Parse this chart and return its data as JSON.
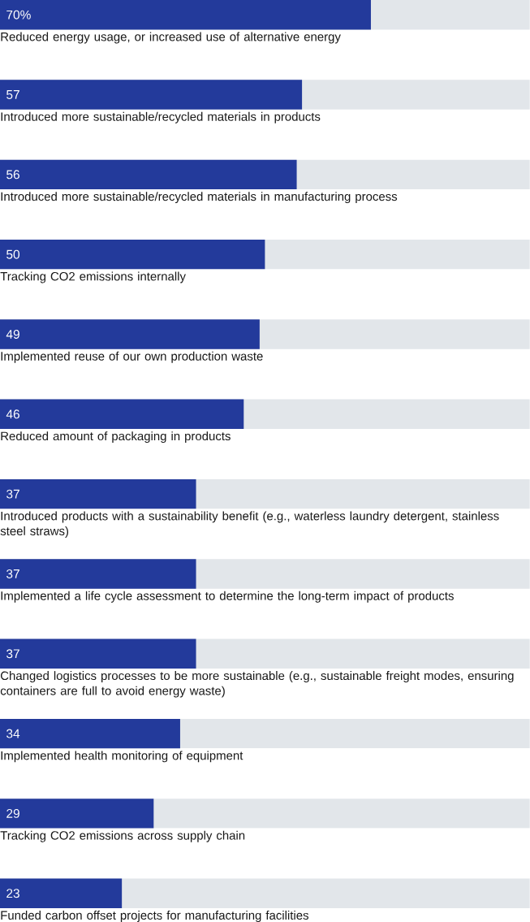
{
  "chart_data": {
    "type": "bar",
    "orientation": "horizontal",
    "categories": [
      "Reduced energy usage, or increased use of alternative energy",
      "Introduced more sustainable/recycled materials in products",
      "Introduced more sustainable/recycled materials in manufacturing process",
      "Tracking CO2 emissions internally",
      "Implemented reuse of our own production waste",
      "Reduced amount of packaging in products",
      "Introduced products with a sustainability benefit (e.g., waterless laundry detergent, stainless steel straws)",
      "Implemented a life cycle assessment to determine the long-term impact of products",
      "Changed logistics processes to be more sustainable (e.g., sustainable freight modes, ensuring containers are full to avoid energy waste)",
      "Implemented health monitoring of equipment",
      "Tracking CO2 emissions across supply chain",
      "Funded carbon offset projects for manufacturing facilities"
    ],
    "values": [
      70,
      57,
      56,
      50,
      49,
      46,
      37,
      37,
      37,
      34,
      29,
      23
    ],
    "value_labels": [
      "70%",
      "57",
      "56",
      "50",
      "49",
      "46",
      "37",
      "37",
      "37",
      "34",
      "29",
      "23"
    ],
    "color": "#233a9b",
    "xlim": [
      0,
      100
    ],
    "tick_labels": false
  }
}
